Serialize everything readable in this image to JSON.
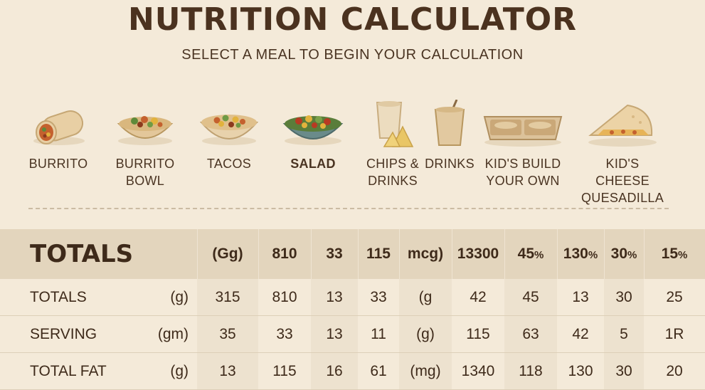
{
  "header": {
    "title": "NUTRITION CALCULATOR",
    "subtitle": "SELECT A MEAL TO BEGIN YOUR CALCULATION"
  },
  "meals": [
    {
      "line1": "BURRITO",
      "line2": "",
      "icon": "burrito-icon",
      "selected": false
    },
    {
      "line1": "BURRITO",
      "line2": "BOWL",
      "icon": "burrito-bowl-icon",
      "selected": false
    },
    {
      "line1": "TACOS",
      "line2": "",
      "icon": "tacos-icon",
      "selected": false
    },
    {
      "line1": "SALAD",
      "line2": "",
      "icon": "salad-icon",
      "selected": true
    },
    {
      "line1": "CHIPS &",
      "line2": "DRINKS",
      "icon": "chips-drinks-icon",
      "selected": false
    },
    {
      "line1": "DRINKS",
      "line2": "",
      "icon": "drink-icon",
      "selected": false
    },
    {
      "line1": "KID'S BUILD",
      "line2": "YOUR OWN",
      "icon": "kids-tray-icon",
      "selected": false
    },
    {
      "line1": "KID'S CHEESE",
      "line2": "QUESADILLA",
      "icon": "quesadilla-icon",
      "selected": false
    }
  ],
  "table": {
    "header": {
      "label": "TOTALS",
      "cells": [
        "(Gg)",
        "810",
        "33",
        "115",
        "mcg)",
        "13300",
        "45",
        "130",
        "30",
        "15"
      ],
      "pct_cells": [
        "",
        "",
        "",
        "",
        "",
        "",
        "%",
        "%",
        "%",
        "%"
      ]
    },
    "rows": [
      {
        "label": "TOTALS",
        "unit": "(g)",
        "cells": [
          "315",
          "810",
          "13",
          "33",
          "(g",
          "42",
          "45",
          "13",
          "30",
          "25"
        ]
      },
      {
        "label": "SERVING",
        "unit": "(gm)",
        "cells": [
          "35",
          "33",
          "13",
          "11",
          "(g)",
          "115",
          "63",
          "42",
          "5",
          "1R"
        ]
      },
      {
        "label": "TOTAL FAT",
        "unit": "(g)",
        "cells": [
          "13",
          "115",
          "16",
          "61",
          "(mg)",
          "1340",
          "118",
          "130",
          "30",
          "20"
        ]
      }
    ]
  },
  "colors": {
    "background": "#f4ead9",
    "header_band": "#e3d5bd",
    "text": "#4a3422"
  }
}
